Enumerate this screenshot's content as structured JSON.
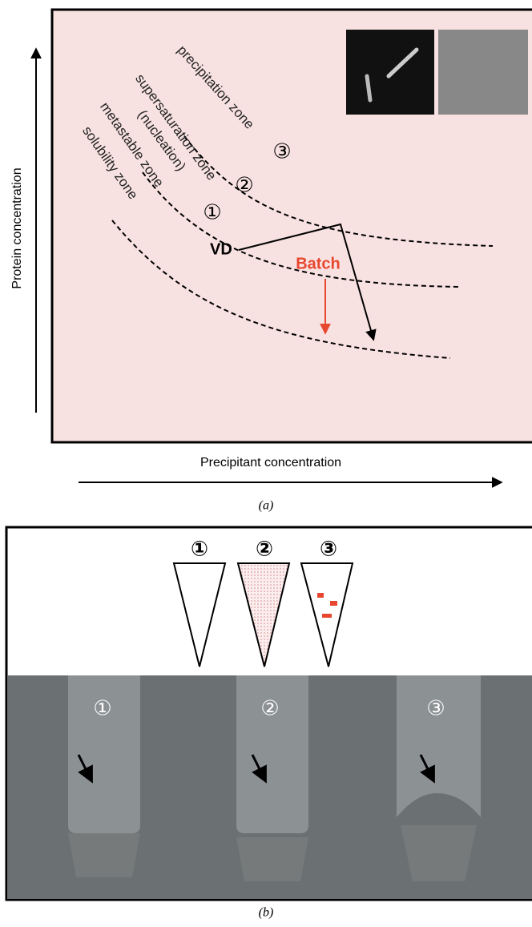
{
  "panel_a": {
    "y_axis_label": "Protein concentration",
    "x_axis_label": "Precipitant concentration",
    "zones": [
      {
        "label": "precipitation zone",
        "number": "③"
      },
      {
        "label": "supersaturation zone",
        "sublabel": "(nucleation)",
        "number": "②"
      },
      {
        "label": "metastable zone",
        "number": "①"
      },
      {
        "label": "solubility zone"
      }
    ],
    "vd_label": "VD",
    "batch_label": "Batch",
    "caption": "(a)"
  },
  "panel_b": {
    "diagram_labels": [
      "①",
      "②",
      "③"
    ],
    "photo_labels": [
      "①",
      "②",
      "③"
    ],
    "caption": "(b)"
  }
}
